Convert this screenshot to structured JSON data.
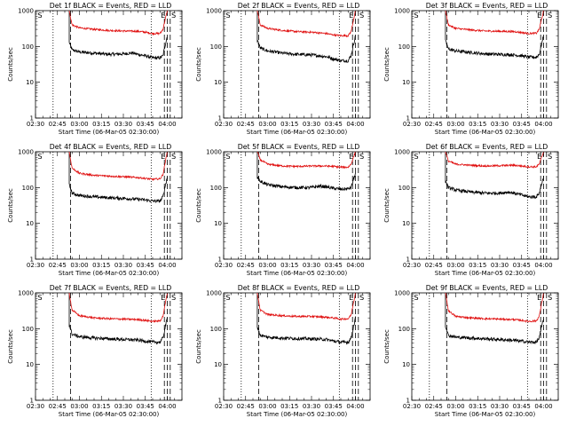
{
  "figure": {
    "xlabel": "Start Time (06-Mar-05 02:30:00)",
    "ylabel": "Counts/sec"
  },
  "chart_data": [
    {
      "type": "line",
      "title": "Det 1f BLACK = Events, RED = LLD",
      "xlabel": "Start Time (06-Mar-05 02:30:00)",
      "ylabel": "Counts/sec",
      "x_ticks": [
        "02:30",
        "02:45",
        "03:00",
        "03:15",
        "03:30",
        "03:45",
        "04:00"
      ],
      "y_ticks": [
        "1",
        "10",
        "100",
        "1000"
      ],
      "xlim": [
        "02:30",
        "04:10"
      ],
      "ylim": [
        1,
        1000
      ],
      "yscale": "log",
      "series": [
        {
          "color": "#000000",
          "x": [
            "02:53",
            "02:55",
            "03:00",
            "03:10",
            "03:20",
            "03:30",
            "03:36",
            "03:40",
            "03:45",
            "03:50",
            "03:55",
            "03:57",
            "04:00"
          ],
          "y": [
            130,
            80,
            70,
            65,
            60,
            62,
            66,
            60,
            55,
            48,
            48,
            55,
            200
          ]
        },
        {
          "color": "#e01010",
          "x": [
            "02:53",
            "02:55",
            "03:00",
            "03:10",
            "03:20",
            "03:30",
            "03:40",
            "03:45",
            "03:50",
            "03:55",
            "03:57",
            "04:00"
          ],
          "y": [
            1000,
            400,
            330,
            300,
            280,
            270,
            265,
            250,
            230,
            230,
            300,
            1000
          ]
        }
      ],
      "markers": {
        "dotted": [
          "02:42",
          "03:49"
        ],
        "dashed": [
          "02:54",
          "03:58",
          "04:00",
          "04:02"
        ],
        "labels": [
          "S",
          "E",
          "S"
        ]
      }
    },
    {
      "type": "line",
      "title": "Det 2f BLACK = Events, RED = LLD",
      "xlabel": "Start Time (06-Mar-05 02:30:00)",
      "ylabel": "Counts/sec",
      "x_ticks": [
        "02:30",
        "02:45",
        "03:00",
        "03:15",
        "03:30",
        "03:45",
        "04:00"
      ],
      "y_ticks": [
        "1",
        "10",
        "100",
        "1000"
      ],
      "xlim": [
        "02:30",
        "04:10"
      ],
      "ylim": [
        1,
        1000
      ],
      "yscale": "log",
      "series": [
        {
          "color": "#000000",
          "x": [
            "02:53",
            "02:55",
            "03:00",
            "03:10",
            "03:20",
            "03:30",
            "03:40",
            "03:45",
            "03:50",
            "03:55",
            "03:57",
            "04:00"
          ],
          "y": [
            150,
            90,
            75,
            65,
            60,
            58,
            52,
            45,
            40,
            40,
            55,
            200
          ]
        },
        {
          "color": "#e01010",
          "x": [
            "02:53",
            "02:55",
            "03:00",
            "03:10",
            "03:20",
            "03:30",
            "03:40",
            "03:45",
            "03:50",
            "03:55",
            "03:57",
            "04:00"
          ],
          "y": [
            1000,
            400,
            320,
            280,
            260,
            250,
            230,
            210,
            200,
            200,
            260,
            1000
          ]
        }
      ],
      "markers": {
        "dotted": [
          "02:42",
          "03:49"
        ],
        "dashed": [
          "02:54",
          "03:58",
          "04:00",
          "04:02"
        ],
        "labels": [
          "S",
          "E",
          "S"
        ]
      }
    },
    {
      "type": "line",
      "title": "Det 3f BLACK = Events, RED = LLD",
      "xlabel": "Start Time (06-Mar-05 02:30:00)",
      "ylabel": "Counts/sec",
      "x_ticks": [
        "02:30",
        "02:45",
        "03:00",
        "03:15",
        "03:30",
        "03:45",
        "04:00"
      ],
      "y_ticks": [
        "1",
        "10",
        "100",
        "1000"
      ],
      "xlim": [
        "02:30",
        "04:10"
      ],
      "ylim": [
        1,
        1000
      ],
      "yscale": "log",
      "series": [
        {
          "color": "#000000",
          "x": [
            "02:53",
            "02:55",
            "03:00",
            "03:10",
            "03:20",
            "03:30",
            "03:40",
            "03:45",
            "03:50",
            "03:55",
            "03:57",
            "04:00"
          ],
          "y": [
            140,
            85,
            75,
            68,
            62,
            60,
            58,
            55,
            50,
            50,
            60,
            200
          ]
        },
        {
          "color": "#e01010",
          "x": [
            "02:53",
            "02:55",
            "03:00",
            "03:10",
            "03:20",
            "03:30",
            "03:40",
            "03:45",
            "03:50",
            "03:55",
            "03:57",
            "04:00"
          ],
          "y": [
            1000,
            400,
            320,
            290,
            270,
            265,
            260,
            245,
            230,
            235,
            300,
            1000
          ]
        }
      ],
      "markers": {
        "dotted": [
          "02:42",
          "03:49"
        ],
        "dashed": [
          "02:54",
          "03:58",
          "04:00",
          "04:02"
        ],
        "labels": [
          "S",
          "E",
          "S"
        ]
      }
    },
    {
      "type": "line",
      "title": "Det 4f BLACK = Events, RED = LLD",
      "xlabel": "Start Time (06-Mar-05 02:30:00)",
      "ylabel": "Counts/sec",
      "x_ticks": [
        "02:30",
        "02:45",
        "03:00",
        "03:15",
        "03:30",
        "03:45",
        "04:00"
      ],
      "y_ticks": [
        "1",
        "10",
        "100",
        "1000"
      ],
      "xlim": [
        "02:30",
        "04:10"
      ],
      "ylim": [
        1,
        1000
      ],
      "yscale": "log",
      "series": [
        {
          "color": "#000000",
          "x": [
            "02:53",
            "02:55",
            "03:00",
            "03:10",
            "03:20",
            "03:30",
            "03:40",
            "03:45",
            "03:50",
            "03:55",
            "03:57",
            "04:00"
          ],
          "y": [
            120,
            70,
            60,
            55,
            52,
            50,
            47,
            45,
            42,
            42,
            55,
            200
          ]
        },
        {
          "color": "#e01010",
          "x": [
            "02:53",
            "02:55",
            "03:00",
            "03:10",
            "03:20",
            "03:30",
            "03:40",
            "03:45",
            "03:50",
            "03:55",
            "03:57",
            "04:00"
          ],
          "y": [
            1000,
            350,
            250,
            220,
            210,
            200,
            190,
            180,
            170,
            175,
            230,
            1000
          ]
        }
      ],
      "markers": {
        "dotted": [
          "02:42",
          "03:49"
        ],
        "dashed": [
          "02:54",
          "03:58",
          "04:00",
          "04:02"
        ],
        "labels": [
          "S",
          "E",
          "S"
        ]
      }
    },
    {
      "type": "line",
      "title": "Det 5f BLACK = Events, RED = LLD",
      "xlabel": "Start Time (06-Mar-05 02:30:00)",
      "ylabel": "Counts/sec",
      "x_ticks": [
        "02:30",
        "02:45",
        "03:00",
        "03:15",
        "03:30",
        "03:45",
        "04:00"
      ],
      "y_ticks": [
        "1",
        "10",
        "100",
        "1000"
      ],
      "xlim": [
        "02:30",
        "04:10"
      ],
      "ylim": [
        1,
        1000
      ],
      "yscale": "log",
      "series": [
        {
          "color": "#000000",
          "x": [
            "02:53",
            "02:55",
            "03:00",
            "03:10",
            "03:20",
            "03:30",
            "03:36",
            "03:40",
            "03:45",
            "03:50",
            "03:55",
            "03:57",
            "04:00"
          ],
          "y": [
            200,
            150,
            120,
            105,
            100,
            100,
            110,
            105,
            95,
            90,
            92,
            100,
            250
          ]
        },
        {
          "color": "#e01010",
          "x": [
            "02:53",
            "02:55",
            "03:00",
            "03:10",
            "03:20",
            "03:30",
            "03:40",
            "03:45",
            "03:50",
            "03:55",
            "03:57",
            "04:00"
          ],
          "y": [
            1000,
            600,
            450,
            400,
            390,
            400,
            400,
            390,
            370,
            370,
            450,
            1000
          ]
        }
      ],
      "markers": {
        "dotted": [
          "02:42",
          "03:49"
        ],
        "dashed": [
          "02:54",
          "03:58",
          "04:00",
          "04:02"
        ],
        "labels": [
          "S",
          "E",
          "S"
        ]
      }
    },
    {
      "type": "line",
      "title": "Det 6f BLACK = Events, RED = LLD",
      "xlabel": "Start Time (06-Mar-05 02:30:00)",
      "ylabel": "Counts/sec",
      "x_ticks": [
        "02:30",
        "02:45",
        "03:00",
        "03:15",
        "03:30",
        "03:45",
        "04:00"
      ],
      "y_ticks": [
        "1",
        "10",
        "100",
        "1000"
      ],
      "xlim": [
        "02:30",
        "04:10"
      ],
      "ylim": [
        1,
        1000
      ],
      "yscale": "log",
      "series": [
        {
          "color": "#000000",
          "x": [
            "02:53",
            "02:55",
            "03:00",
            "03:10",
            "03:20",
            "03:30",
            "03:36",
            "03:40",
            "03:45",
            "03:50",
            "03:55",
            "03:57",
            "04:00"
          ],
          "y": [
            150,
            100,
            85,
            75,
            70,
            70,
            75,
            70,
            62,
            55,
            55,
            70,
            200
          ]
        },
        {
          "color": "#e01010",
          "x": [
            "02:53",
            "02:55",
            "03:00",
            "03:10",
            "03:20",
            "03:30",
            "03:40",
            "03:45",
            "03:50",
            "03:55",
            "03:57",
            "04:00"
          ],
          "y": [
            1000,
            550,
            450,
            420,
            400,
            410,
            420,
            400,
            380,
            380,
            450,
            1000
          ]
        }
      ],
      "markers": {
        "dotted": [
          "02:42",
          "03:49"
        ],
        "dashed": [
          "02:54",
          "03:58",
          "04:00",
          "04:02"
        ],
        "labels": [
          "S",
          "E",
          "S"
        ]
      }
    },
    {
      "type": "line",
      "title": "Det 7f BLACK = Events, RED = LLD",
      "xlabel": "Start Time (06-Mar-05 02:30:00)",
      "ylabel": "Counts/sec",
      "x_ticks": [
        "02:30",
        "02:45",
        "03:00",
        "03:15",
        "03:30",
        "03:45",
        "04:00"
      ],
      "y_ticks": [
        "1",
        "10",
        "100",
        "1000"
      ],
      "xlim": [
        "02:30",
        "04:10"
      ],
      "ylim": [
        1,
        1000
      ],
      "yscale": "log",
      "series": [
        {
          "color": "#000000",
          "x": [
            "02:53",
            "02:55",
            "03:00",
            "03:10",
            "03:20",
            "03:30",
            "03:40",
            "03:45",
            "03:50",
            "03:55",
            "03:57",
            "04:00"
          ],
          "y": [
            130,
            70,
            60,
            55,
            52,
            50,
            48,
            45,
            42,
            42,
            55,
            200
          ]
        },
        {
          "color": "#e01010",
          "x": [
            "02:53",
            "02:55",
            "03:00",
            "03:10",
            "03:20",
            "03:30",
            "03:40",
            "03:45",
            "03:50",
            "03:55",
            "03:57",
            "04:00"
          ],
          "y": [
            1000,
            330,
            230,
            200,
            190,
            185,
            180,
            170,
            160,
            165,
            220,
            1000
          ]
        }
      ],
      "markers": {
        "dotted": [
          "02:42",
          "03:49"
        ],
        "dashed": [
          "02:54",
          "03:58",
          "04:00",
          "04:02"
        ],
        "labels": [
          "S",
          "E",
          "S"
        ]
      }
    },
    {
      "type": "line",
      "title": "Det 8f BLACK = Events, RED = LLD",
      "xlabel": "Start Time (06-Mar-05 02:30:00)",
      "ylabel": "Counts/sec",
      "x_ticks": [
        "02:30",
        "02:45",
        "03:00",
        "03:15",
        "03:30",
        "03:45",
        "04:00"
      ],
      "y_ticks": [
        "1",
        "10",
        "100",
        "1000"
      ],
      "xlim": [
        "02:30",
        "04:10"
      ],
      "ylim": [
        1,
        1000
      ],
      "yscale": "log",
      "series": [
        {
          "color": "#000000",
          "x": [
            "02:53",
            "02:55",
            "03:00",
            "03:10",
            "03:20",
            "03:30",
            "03:40",
            "03:45",
            "03:50",
            "03:55",
            "03:57",
            "04:00"
          ],
          "y": [
            110,
            65,
            58,
            55,
            53,
            52,
            50,
            45,
            42,
            42,
            55,
            200
          ]
        },
        {
          "color": "#e01010",
          "x": [
            "02:53",
            "02:55",
            "03:00",
            "03:10",
            "03:20",
            "03:30",
            "03:40",
            "03:45",
            "03:50",
            "03:55",
            "03:57",
            "04:00"
          ],
          "y": [
            1000,
            330,
            250,
            230,
            220,
            220,
            210,
            200,
            185,
            190,
            240,
            1000
          ]
        }
      ],
      "markers": {
        "dotted": [
          "02:42",
          "03:49"
        ],
        "dashed": [
          "02:54",
          "03:58",
          "04:00",
          "04:02"
        ],
        "labels": [
          "S",
          "E",
          "S"
        ]
      }
    },
    {
      "type": "line",
      "title": "Det 9f BLACK = Events, RED = LLD",
      "xlabel": "Start Time (06-Mar-05 02:30:00)",
      "ylabel": "Counts/sec",
      "x_ticks": [
        "02:30",
        "02:45",
        "03:00",
        "03:15",
        "03:30",
        "03:45",
        "04:00"
      ],
      "y_ticks": [
        "1",
        "10",
        "100",
        "1000"
      ],
      "xlim": [
        "02:30",
        "04:10"
      ],
      "ylim": [
        1,
        1000
      ],
      "yscale": "log",
      "series": [
        {
          "color": "#000000",
          "x": [
            "02:53",
            "02:55",
            "03:00",
            "03:10",
            "03:20",
            "03:30",
            "03:40",
            "03:45",
            "03:50",
            "03:55",
            "03:57",
            "04:00"
          ],
          "y": [
            120,
            65,
            58,
            55,
            52,
            50,
            47,
            45,
            42,
            42,
            55,
            200
          ]
        },
        {
          "color": "#e01010",
          "x": [
            "02:53",
            "02:55",
            "03:00",
            "03:10",
            "03:20",
            "03:30",
            "03:40",
            "03:45",
            "03:50",
            "03:55",
            "03:57",
            "04:00"
          ],
          "y": [
            1000,
            320,
            220,
            200,
            190,
            185,
            180,
            170,
            160,
            165,
            220,
            1000
          ]
        }
      ],
      "markers": {
        "dotted": [
          "02:42",
          "03:49"
        ],
        "dashed": [
          "02:54",
          "03:58",
          "04:00",
          "04:02"
        ],
        "labels": [
          "S",
          "E",
          "S"
        ]
      }
    }
  ]
}
